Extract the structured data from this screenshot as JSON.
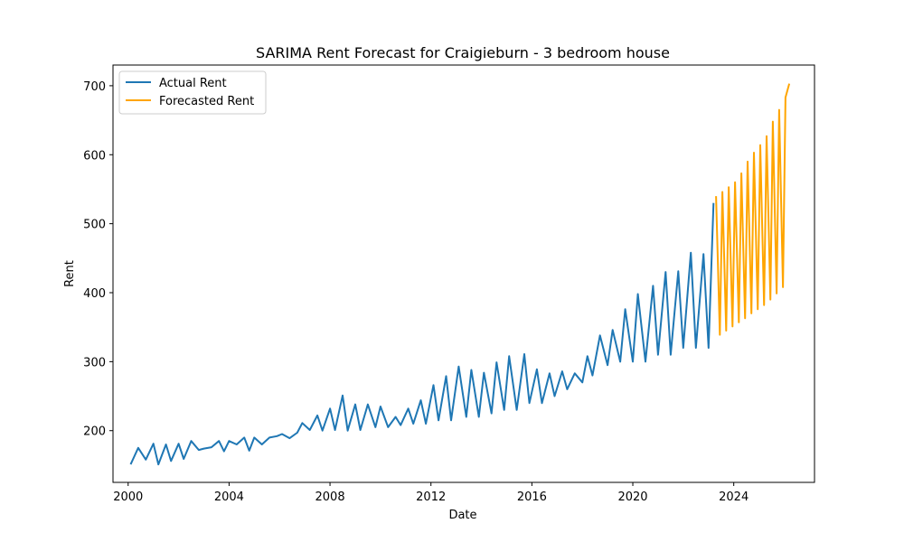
{
  "chart_data": {
    "type": "line",
    "title": "SARIMA Rent Forecast for Craigieburn - 3 bedroom house",
    "xlabel": "Date",
    "ylabel": "Rent",
    "xlim": [
      1999.4,
      2027.2
    ],
    "ylim": [
      125,
      730
    ],
    "x_ticks": [
      2000,
      2004,
      2008,
      2012,
      2016,
      2020,
      2024
    ],
    "x_tick_labels": [
      "2000",
      "2004",
      "2008",
      "2012",
      "2016",
      "2020",
      "2024"
    ],
    "y_ticks": [
      200,
      300,
      400,
      500,
      600,
      700
    ],
    "y_tick_labels": [
      "200",
      "300",
      "400",
      "500",
      "600",
      "700"
    ],
    "grid": false,
    "legend_placement": "top-left",
    "colors": {
      "actual": "#1f77b4",
      "forecast": "#ffa500"
    },
    "series": [
      {
        "name": "Actual Rent",
        "x": [
          2000.1,
          2000.4,
          2000.7,
          2001.0,
          2001.2,
          2001.5,
          2001.7,
          2002.0,
          2002.2,
          2002.5,
          2002.8,
          2003.0,
          2003.3,
          2003.6,
          2003.8,
          2004.0,
          2004.3,
          2004.6,
          2004.8,
          2005.0,
          2005.3,
          2005.6,
          2005.9,
          2006.1,
          2006.4,
          2006.7,
          2006.9,
          2007.2,
          2007.5,
          2007.7,
          2008.0,
          2008.2,
          2008.5,
          2008.7,
          2009.0,
          2009.2,
          2009.5,
          2009.8,
          2010.0,
          2010.3,
          2010.6,
          2010.8,
          2011.1,
          2011.3,
          2011.6,
          2011.8,
          2012.1,
          2012.3,
          2012.6,
          2012.8,
          2013.1,
          2013.4,
          2013.6,
          2013.9,
          2014.1,
          2014.4,
          2014.6,
          2014.9,
          2015.1,
          2015.4,
          2015.7,
          2015.9,
          2016.2,
          2016.4,
          2016.7,
          2016.9,
          2017.2,
          2017.4,
          2017.7,
          2018.0,
          2018.2,
          2018.4,
          2018.7,
          2019.0,
          2019.2,
          2019.5,
          2019.7,
          2020.0,
          2020.2,
          2020.5,
          2020.8,
          2021.0,
          2021.3,
          2021.5,
          2021.8,
          2022.0,
          2022.3,
          2022.5,
          2022.8,
          2023.0,
          2023.2
        ],
        "values": [
          151,
          175,
          158,
          181,
          151,
          180,
          156,
          181,
          159,
          185,
          172,
          174,
          176,
          185,
          170,
          185,
          180,
          190,
          171,
          190,
          180,
          190,
          192,
          195,
          189,
          197,
          211,
          201,
          222,
          200,
          232,
          201,
          251,
          200,
          238,
          201,
          238,
          205,
          235,
          205,
          220,
          208,
          232,
          210,
          244,
          210,
          266,
          215,
          279,
          215,
          293,
          220,
          288,
          220,
          284,
          225,
          299,
          230,
          308,
          230,
          311,
          240,
          289,
          240,
          283,
          250,
          286,
          260,
          283,
          270,
          308,
          280,
          338,
          295,
          346,
          300,
          376,
          300,
          398,
          300,
          410,
          310,
          430,
          310,
          431,
          320,
          458,
          320,
          456,
          320,
          530
        ]
      },
      {
        "name": "Forecasted Rent",
        "x": [
          2023.3,
          2023.45,
          2023.55,
          2023.7,
          2023.8,
          2023.95,
          2024.05,
          2024.2,
          2024.3,
          2024.45,
          2024.55,
          2024.7,
          2024.8,
          2024.95,
          2025.05,
          2025.2,
          2025.3,
          2025.45,
          2025.55,
          2025.7,
          2025.8,
          2025.95,
          2026.05,
          2026.2
        ],
        "values": [
          540,
          339,
          546,
          345,
          553,
          351,
          560,
          357,
          573,
          363,
          590,
          370,
          603,
          376,
          614,
          382,
          627,
          390,
          648,
          399,
          665,
          408,
          683,
          703
        ]
      }
    ]
  }
}
